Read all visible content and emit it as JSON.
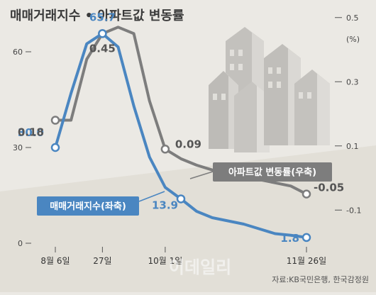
{
  "chart_data": {
    "type": "line",
    "title": "매매거래지수 • 아파트값 변동률",
    "x_tick_labels": [
      "8월 6일",
      "27일",
      "10월 1일",
      "11월 26일"
    ],
    "left_axis": {
      "ticks": [
        "60",
        "30",
        "0"
      ],
      "range": [
        0,
        75
      ]
    },
    "right_axis": {
      "unit": "(%)",
      "ticks": [
        "0.5",
        "0.3",
        "0.1",
        "-0.1"
      ],
      "range": [
        -0.1,
        0.6
      ]
    },
    "series": [
      {
        "name": "매매거래지수(좌축)",
        "axis": "left",
        "color": "#4a86c1",
        "points": [
          {
            "x": 0,
            "y": 30.0
          },
          {
            "x": 1,
            "y": 47.0
          },
          {
            "x": 2,
            "y": 62.5
          },
          {
            "x": 3,
            "y": 65.7
          },
          {
            "x": 4,
            "y": 61.5
          },
          {
            "x": 5,
            "y": 43.0
          },
          {
            "x": 6,
            "y": 27.0
          },
          {
            "x": 7,
            "y": 17.5
          },
          {
            "x": 8,
            "y": 13.9
          },
          {
            "x": 9,
            "y": 10.0
          },
          {
            "x": 10,
            "y": 8.0
          },
          {
            "x": 11,
            "y": 7.0
          },
          {
            "x": 12,
            "y": 6.0
          },
          {
            "x": 13,
            "y": 4.5
          },
          {
            "x": 14,
            "y": 3.0
          },
          {
            "x": 15,
            "y": 2.5
          },
          {
            "x": 16,
            "y": 1.8
          }
        ],
        "labels": [
          {
            "x": 0,
            "text": "30.0"
          },
          {
            "x": 3,
            "text": "65.7"
          },
          {
            "x": 8,
            "text": "13.9"
          },
          {
            "x": 16,
            "text": "1.8"
          }
        ]
      },
      {
        "name": "아파트값 변동률(우축)",
        "axis": "right",
        "color": "#7d7d7d",
        "points": [
          {
            "x": 0,
            "y": 0.18
          },
          {
            "x": 1,
            "y": 0.18
          },
          {
            "x": 2,
            "y": 0.37
          },
          {
            "x": 3,
            "y": 0.45
          },
          {
            "x": 4,
            "y": 0.47
          },
          {
            "x": 5,
            "y": 0.45
          },
          {
            "x": 6,
            "y": 0.24
          },
          {
            "x": 7,
            "y": 0.09
          },
          {
            "x": 8,
            "y": 0.06
          },
          {
            "x": 9,
            "y": 0.04
          },
          {
            "x": 10,
            "y": 0.025
          },
          {
            "x": 11,
            "y": 0.015
          },
          {
            "x": 12,
            "y": 0.005
          },
          {
            "x": 13,
            "y": -0.005
          },
          {
            "x": 14,
            "y": -0.015
          },
          {
            "x": 15,
            "y": -0.025
          },
          {
            "x": 16,
            "y": -0.05
          }
        ],
        "labels": [
          {
            "x": 0,
            "text": "0.18"
          },
          {
            "x": 3,
            "text": "0.45"
          },
          {
            "x": 7,
            "text": "0.09"
          },
          {
            "x": 16,
            "text": "-0.05"
          }
        ]
      }
    ],
    "grid": false
  },
  "source": "자료:KB국민은행, 한국감정원",
  "watermark": "이데일리",
  "colors": {
    "blue": "#4a86c1",
    "gray": "#7d7d7d",
    "background": "#ebe9e4"
  }
}
